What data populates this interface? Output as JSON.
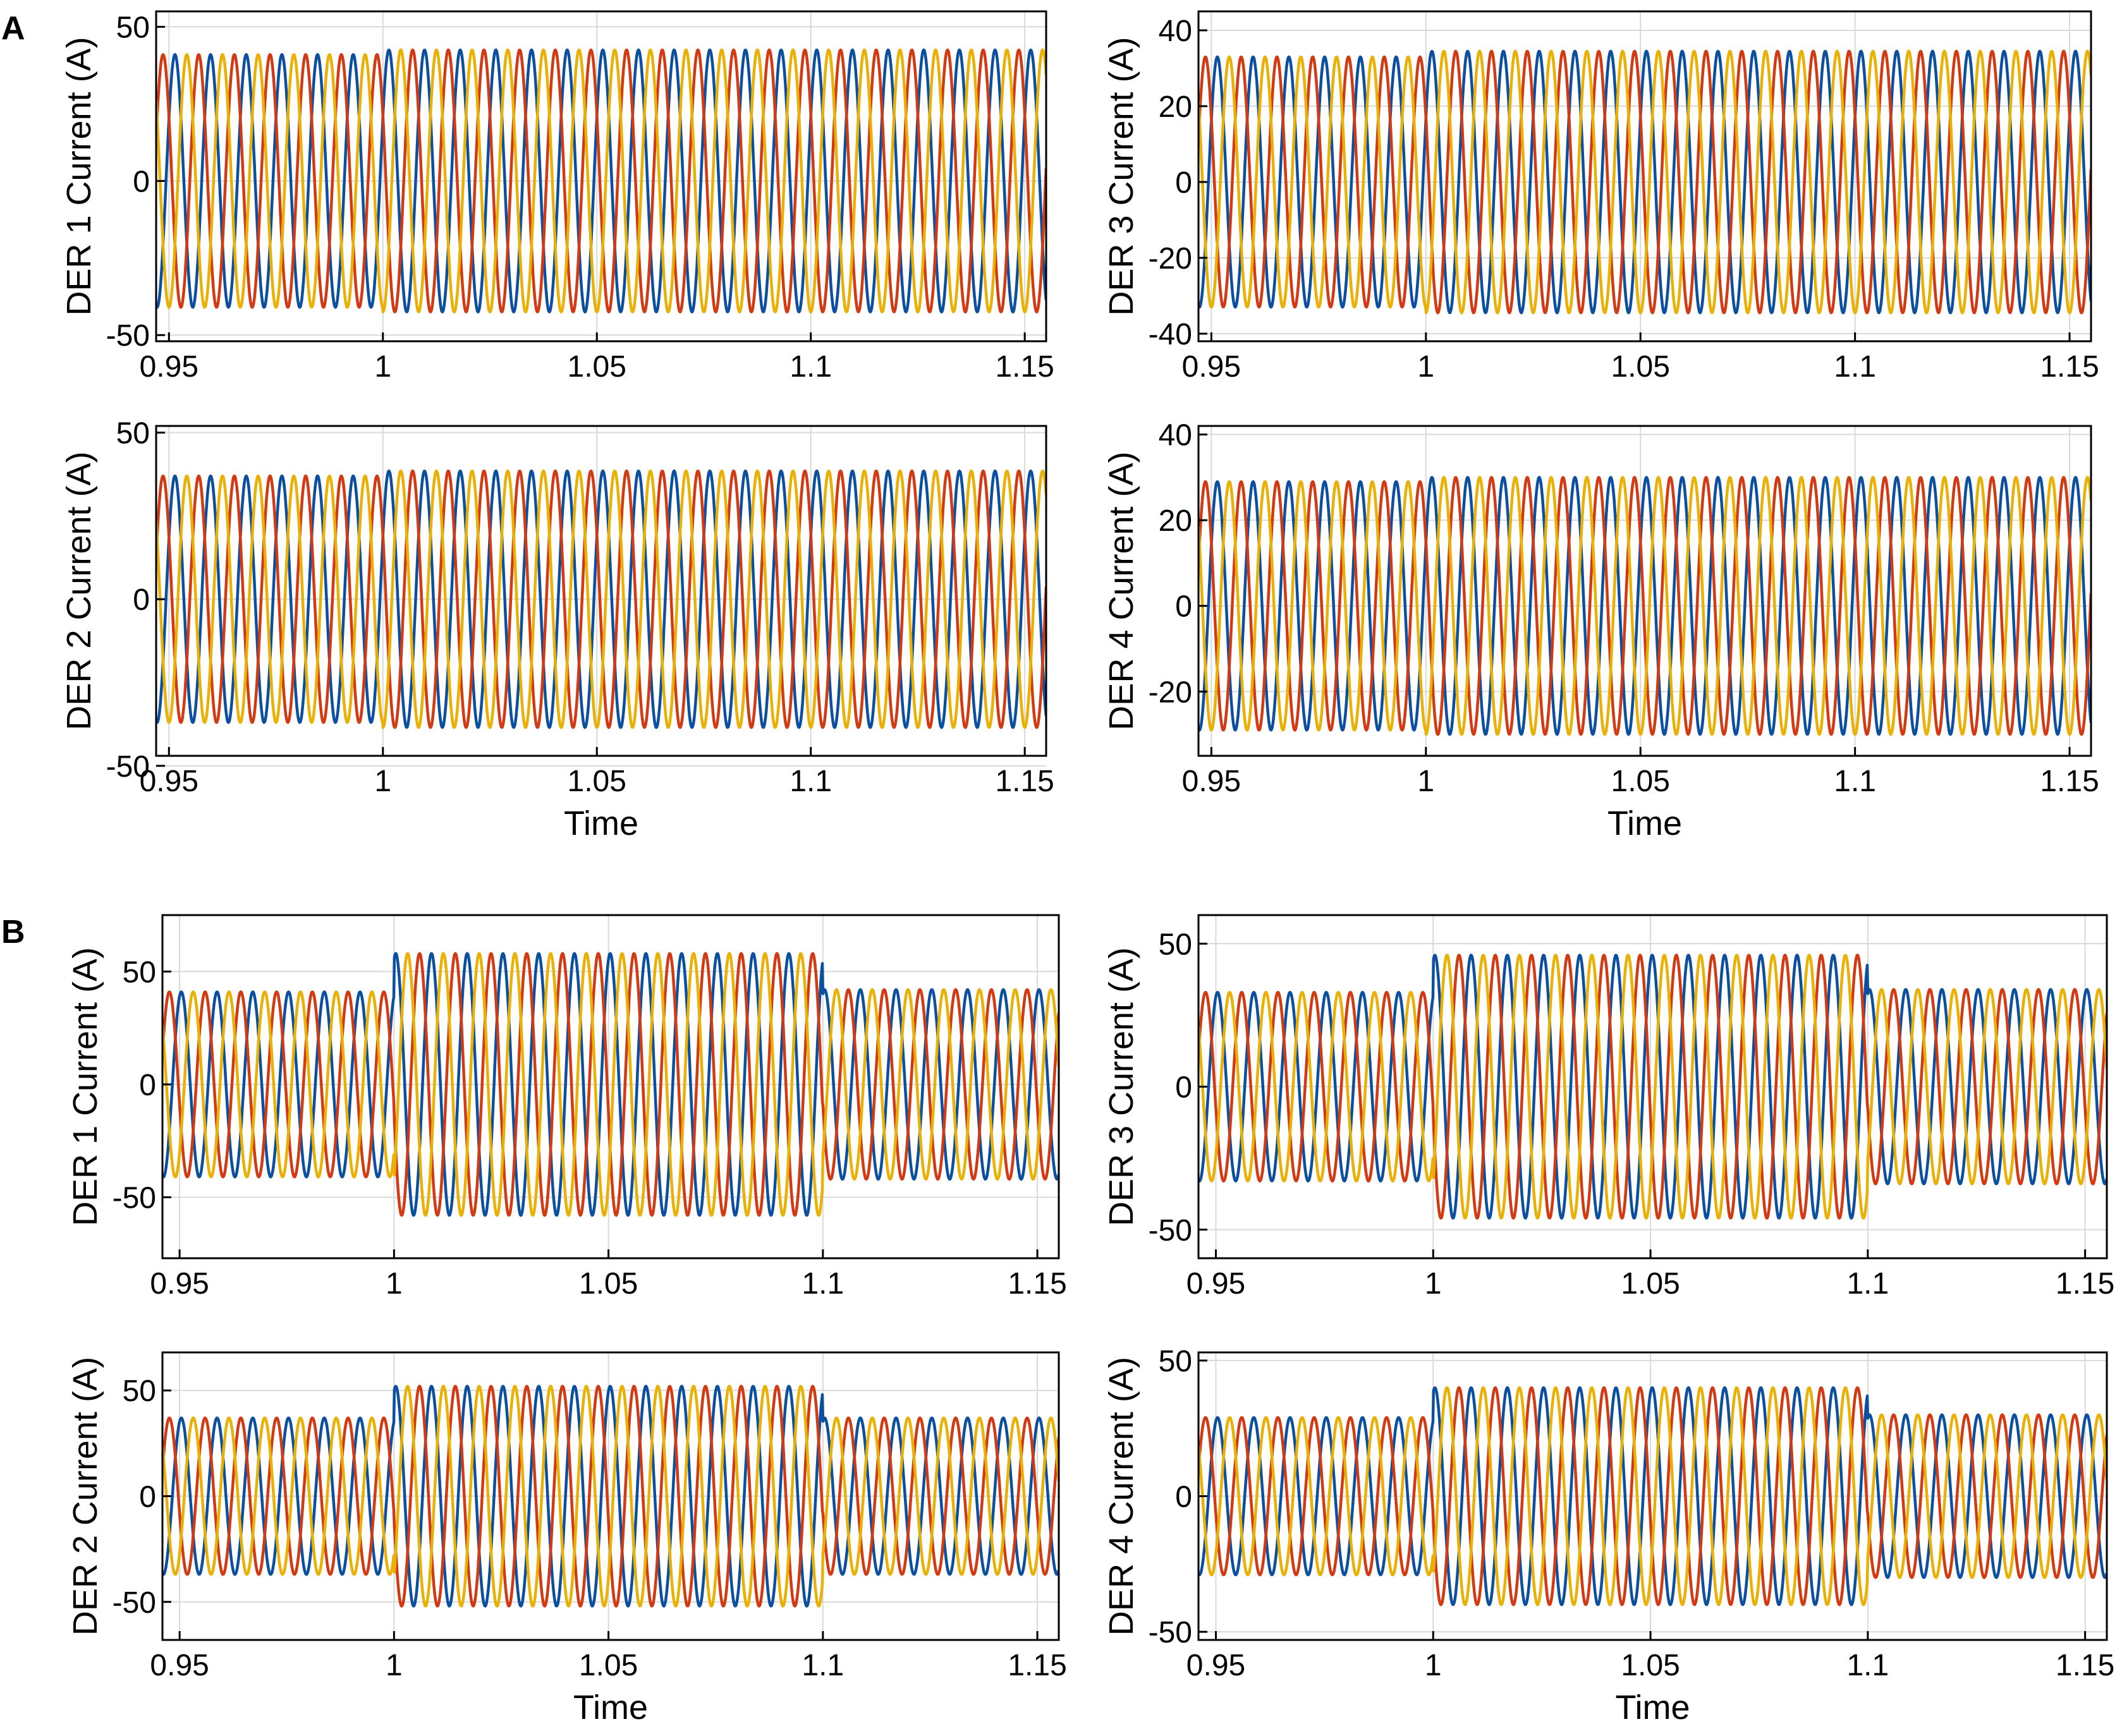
{
  "figure": {
    "panel_labels": [
      "A",
      "B"
    ],
    "colors": {
      "phase_a": "#0b4f9e",
      "phase_b": "#d13a12",
      "phase_c": "#e9b006",
      "grid": "#d9d9d9",
      "axis": "#000000"
    }
  },
  "chart_data": [
    {
      "id": "A1",
      "group": "A",
      "type": "line",
      "ylabel": "DER 1 Current (A)",
      "xlabel": "",
      "xlim": [
        0.947,
        1.155
      ],
      "ylim": [
        -52,
        55
      ],
      "xticks": [
        0.95,
        1,
        1.05,
        1.1,
        1.15
      ],
      "yticks": [
        -50,
        0,
        50
      ],
      "grid": true,
      "frequency_hz": 120,
      "t_step": 1.0,
      "t_end": 1.155,
      "amplitude_before": 41,
      "amplitude_after": 42.5,
      "amplitude_final": 42.5,
      "series": [
        {
          "phase_deg": -100,
          "color": "#0b4f9e"
        },
        {
          "phase_deg": 20,
          "color": "#d13a12"
        },
        {
          "phase_deg": 140,
          "color": "#e9b006"
        }
      ]
    },
    {
      "id": "A3",
      "group": "A",
      "type": "line",
      "ylabel": "DER 3 Current (A)",
      "xlabel": "",
      "xlim": [
        0.947,
        1.155
      ],
      "ylim": [
        -42,
        45
      ],
      "xticks": [
        0.95,
        1,
        1.05,
        1.1,
        1.15
      ],
      "yticks": [
        -40,
        -20,
        0,
        20,
        40
      ],
      "grid": true,
      "frequency_hz": 120,
      "t_step": 1.0,
      "t_end": 1.155,
      "amplitude_before": 33,
      "amplitude_after": 34.5,
      "amplitude_final": 34.5,
      "series": [
        {
          "phase_deg": -100,
          "color": "#0b4f9e"
        },
        {
          "phase_deg": 20,
          "color": "#d13a12"
        },
        {
          "phase_deg": 140,
          "color": "#e9b006"
        }
      ]
    },
    {
      "id": "A2",
      "group": "A",
      "type": "line",
      "ylabel": "DER 2 Current (A)",
      "xlabel": "Time",
      "xlim": [
        0.947,
        1.155
      ],
      "ylim": [
        -47,
        52
      ],
      "xticks": [
        0.95,
        1,
        1.05,
        1.1,
        1.15
      ],
      "yticks": [
        -50,
        0,
        50
      ],
      "grid": true,
      "frequency_hz": 120,
      "t_step": 1.0,
      "t_end": 1.155,
      "amplitude_before": 37,
      "amplitude_after": 38.5,
      "amplitude_final": 38.5,
      "series": [
        {
          "phase_deg": -100,
          "color": "#0b4f9e"
        },
        {
          "phase_deg": 20,
          "color": "#d13a12"
        },
        {
          "phase_deg": 140,
          "color": "#e9b006"
        }
      ]
    },
    {
      "id": "A4",
      "group": "A",
      "type": "line",
      "ylabel": "DER 4 Current (A)",
      "xlabel": "Time",
      "xlim": [
        0.947,
        1.155
      ],
      "ylim": [
        -35,
        42
      ],
      "xticks": [
        0.95,
        1,
        1.05,
        1.1,
        1.15
      ],
      "yticks": [
        -20,
        0,
        20,
        40
      ],
      "grid": true,
      "frequency_hz": 120,
      "t_step": 1.0,
      "t_end": 1.155,
      "amplitude_before": 29,
      "amplitude_after": 30,
      "amplitude_final": 30,
      "series": [
        {
          "phase_deg": -100,
          "color": "#0b4f9e"
        },
        {
          "phase_deg": 20,
          "color": "#d13a12"
        },
        {
          "phase_deg": 140,
          "color": "#e9b006"
        }
      ]
    },
    {
      "id": "B1",
      "group": "B",
      "type": "line",
      "ylabel": "DER 1 Current (A)",
      "xlabel": "",
      "xlim": [
        0.946,
        1.155
      ],
      "ylim": [
        -77,
        75
      ],
      "xticks": [
        0.95,
        1,
        1.05,
        1.1,
        1.15
      ],
      "yticks": [
        -50,
        0,
        50
      ],
      "grid": true,
      "frequency_hz": 120,
      "t_step": 1.0,
      "t_end": 1.1,
      "amplitude_before": 41,
      "amplitude_after": 58,
      "amplitude_final": 42,
      "series": [
        {
          "phase_deg": -100,
          "color": "#0b4f9e"
        },
        {
          "phase_deg": 20,
          "color": "#d13a12"
        },
        {
          "phase_deg": 140,
          "color": "#e9b006"
        }
      ]
    },
    {
      "id": "B3",
      "group": "B",
      "type": "line",
      "ylabel": "DER 3 Current (A)",
      "xlabel": "",
      "xlim": [
        0.946,
        1.155
      ],
      "ylim": [
        -60,
        60
      ],
      "xticks": [
        0.95,
        1,
        1.05,
        1.1,
        1.15
      ],
      "yticks": [
        -50,
        0,
        50
      ],
      "grid": true,
      "frequency_hz": 120,
      "t_step": 1.0,
      "t_end": 1.1,
      "amplitude_before": 33,
      "amplitude_after": 46,
      "amplitude_final": 34,
      "series": [
        {
          "phase_deg": -100,
          "color": "#0b4f9e"
        },
        {
          "phase_deg": 20,
          "color": "#d13a12"
        },
        {
          "phase_deg": 140,
          "color": "#e9b006"
        }
      ]
    },
    {
      "id": "B2",
      "group": "B",
      "type": "line",
      "ylabel": "DER 2 Current (A)",
      "xlabel": "Time",
      "xlim": [
        0.946,
        1.155
      ],
      "ylim": [
        -68,
        68
      ],
      "xticks": [
        0.95,
        1,
        1.05,
        1.1,
        1.15
      ],
      "yticks": [
        -50,
        0,
        50
      ],
      "grid": true,
      "frequency_hz": 120,
      "t_step": 1.0,
      "t_end": 1.1,
      "amplitude_before": 37,
      "amplitude_after": 52,
      "amplitude_final": 37,
      "series": [
        {
          "phase_deg": -100,
          "color": "#0b4f9e"
        },
        {
          "phase_deg": 20,
          "color": "#d13a12"
        },
        {
          "phase_deg": 140,
          "color": "#e9b006"
        }
      ]
    },
    {
      "id": "B4",
      "group": "B",
      "type": "line",
      "ylabel": "DER 4 Current (A)",
      "xlabel": "Time",
      "xlim": [
        0.946,
        1.155
      ],
      "ylim": [
        -53,
        53
      ],
      "xticks": [
        0.95,
        1,
        1.05,
        1.1,
        1.15
      ],
      "yticks": [
        -50,
        0,
        50
      ],
      "grid": true,
      "frequency_hz": 120,
      "t_step": 1.0,
      "t_end": 1.1,
      "amplitude_before": 29,
      "amplitude_after": 40,
      "amplitude_final": 30,
      "series": [
        {
          "phase_deg": -100,
          "color": "#0b4f9e"
        },
        {
          "phase_deg": 20,
          "color": "#d13a12"
        },
        {
          "phase_deg": 140,
          "color": "#e9b006"
        }
      ]
    }
  ]
}
